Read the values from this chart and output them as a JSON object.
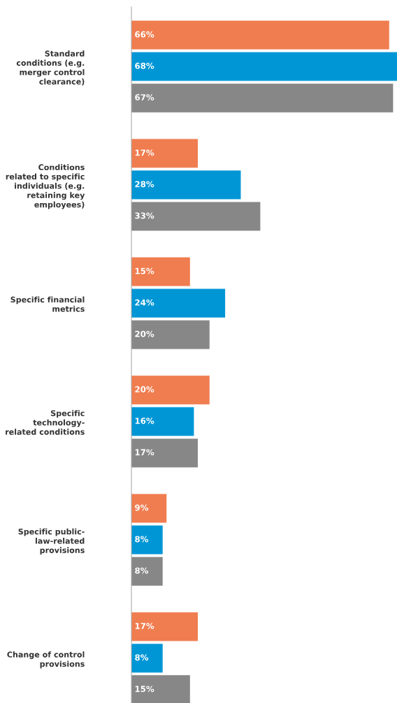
{
  "chart_data": {
    "type": "bar",
    "orientation": "horizontal",
    "grid": false,
    "legend": false,
    "categories": [
      "Standard\nconditions (e.g.\nmerger control\nclearance)",
      "Conditions\nrelated to specific\nindividuals (e.g.\nretaining key\nemployees)",
      "Specific financial\nmetrics",
      "Specific\ntechnology-\nrelated conditions",
      "Specific public-\nlaw-related\nprovisions",
      "Change of control\nprovisions"
    ],
    "series": [
      {
        "color": "#f07d50",
        "values": [
          66,
          17,
          15,
          20,
          9,
          17
        ],
        "value_labels": [
          "66%",
          "17%",
          "15%",
          "20%",
          "9%",
          "17%"
        ]
      },
      {
        "color": "#0096d6",
        "values": [
          68,
          28,
          24,
          16,
          8,
          8
        ],
        "value_labels": [
          "68%",
          "28%",
          "24%",
          "16%",
          "8%",
          "8%"
        ]
      },
      {
        "color": "#878787",
        "values": [
          67,
          33,
          20,
          17,
          8,
          15
        ],
        "value_labels": [
          "67%",
          "33%",
          "20%",
          "17%",
          "8%",
          "15%"
        ]
      }
    ]
  }
}
